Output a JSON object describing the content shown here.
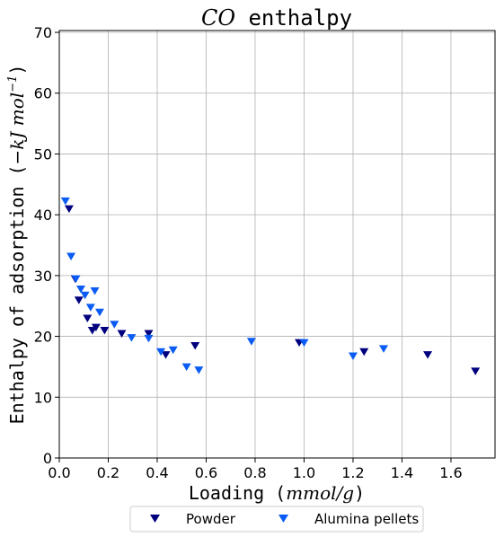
{
  "chart_data": {
    "type": "scatter",
    "title_math": "CO",
    "title_text": " enthalpy",
    "xlabel_text": "Loading (",
    "xlabel_math": "mmol/g",
    "xlabel_close": ")",
    "ylabel_text": "Enthalpy of adsorption (",
    "ylabel_math": "−kJ mol",
    "ylabel_sup": "−1",
    "ylabel_close": ")",
    "xlim": [
      0,
      1.78
    ],
    "ylim": [
      0,
      70.3
    ],
    "xticks": [
      0.0,
      0.2,
      0.4,
      0.6,
      0.8,
      1.0,
      1.2,
      1.4,
      1.6
    ],
    "xtick_labels": [
      "0.0",
      "0.2",
      "0.4",
      "0.6",
      "0.8",
      "1.0",
      "1.2",
      "1.4",
      "1.6"
    ],
    "yticks": [
      0,
      10,
      20,
      30,
      40,
      50,
      60,
      70
    ],
    "ytick_labels": [
      "0",
      "10",
      "20",
      "30",
      "40",
      "50",
      "60",
      "70"
    ],
    "grid": true,
    "legend_position": "bottom-center",
    "marker": "triangle-down",
    "series": [
      {
        "name": "Powder",
        "color": "#00007f",
        "x": [
          0.04,
          0.065,
          0.08,
          0.115,
          0.135,
          0.15,
          0.185,
          0.255,
          0.365,
          0.435,
          0.555,
          0.98,
          1.245,
          1.505,
          1.7
        ],
        "y": [
          41,
          29.5,
          26,
          23,
          21,
          21.5,
          21,
          20.5,
          20.5,
          17,
          18.5,
          19,
          17.5,
          17,
          14.3
        ]
      },
      {
        "name": "Alumina pellets",
        "color": "#0a5cf5",
        "x": [
          0.025,
          0.048,
          0.068,
          0.088,
          0.105,
          0.128,
          0.145,
          0.165,
          0.225,
          0.295,
          0.365,
          0.415,
          0.465,
          0.52,
          0.57,
          0.785,
          1.0,
          1.2,
          1.325
        ],
        "y": [
          42.3,
          33.2,
          29.5,
          27.8,
          26.8,
          24.8,
          27.5,
          24,
          22,
          19.8,
          19.7,
          17.5,
          17.8,
          15,
          14.5,
          19.2,
          19,
          16.8,
          18
        ]
      }
    ]
  }
}
